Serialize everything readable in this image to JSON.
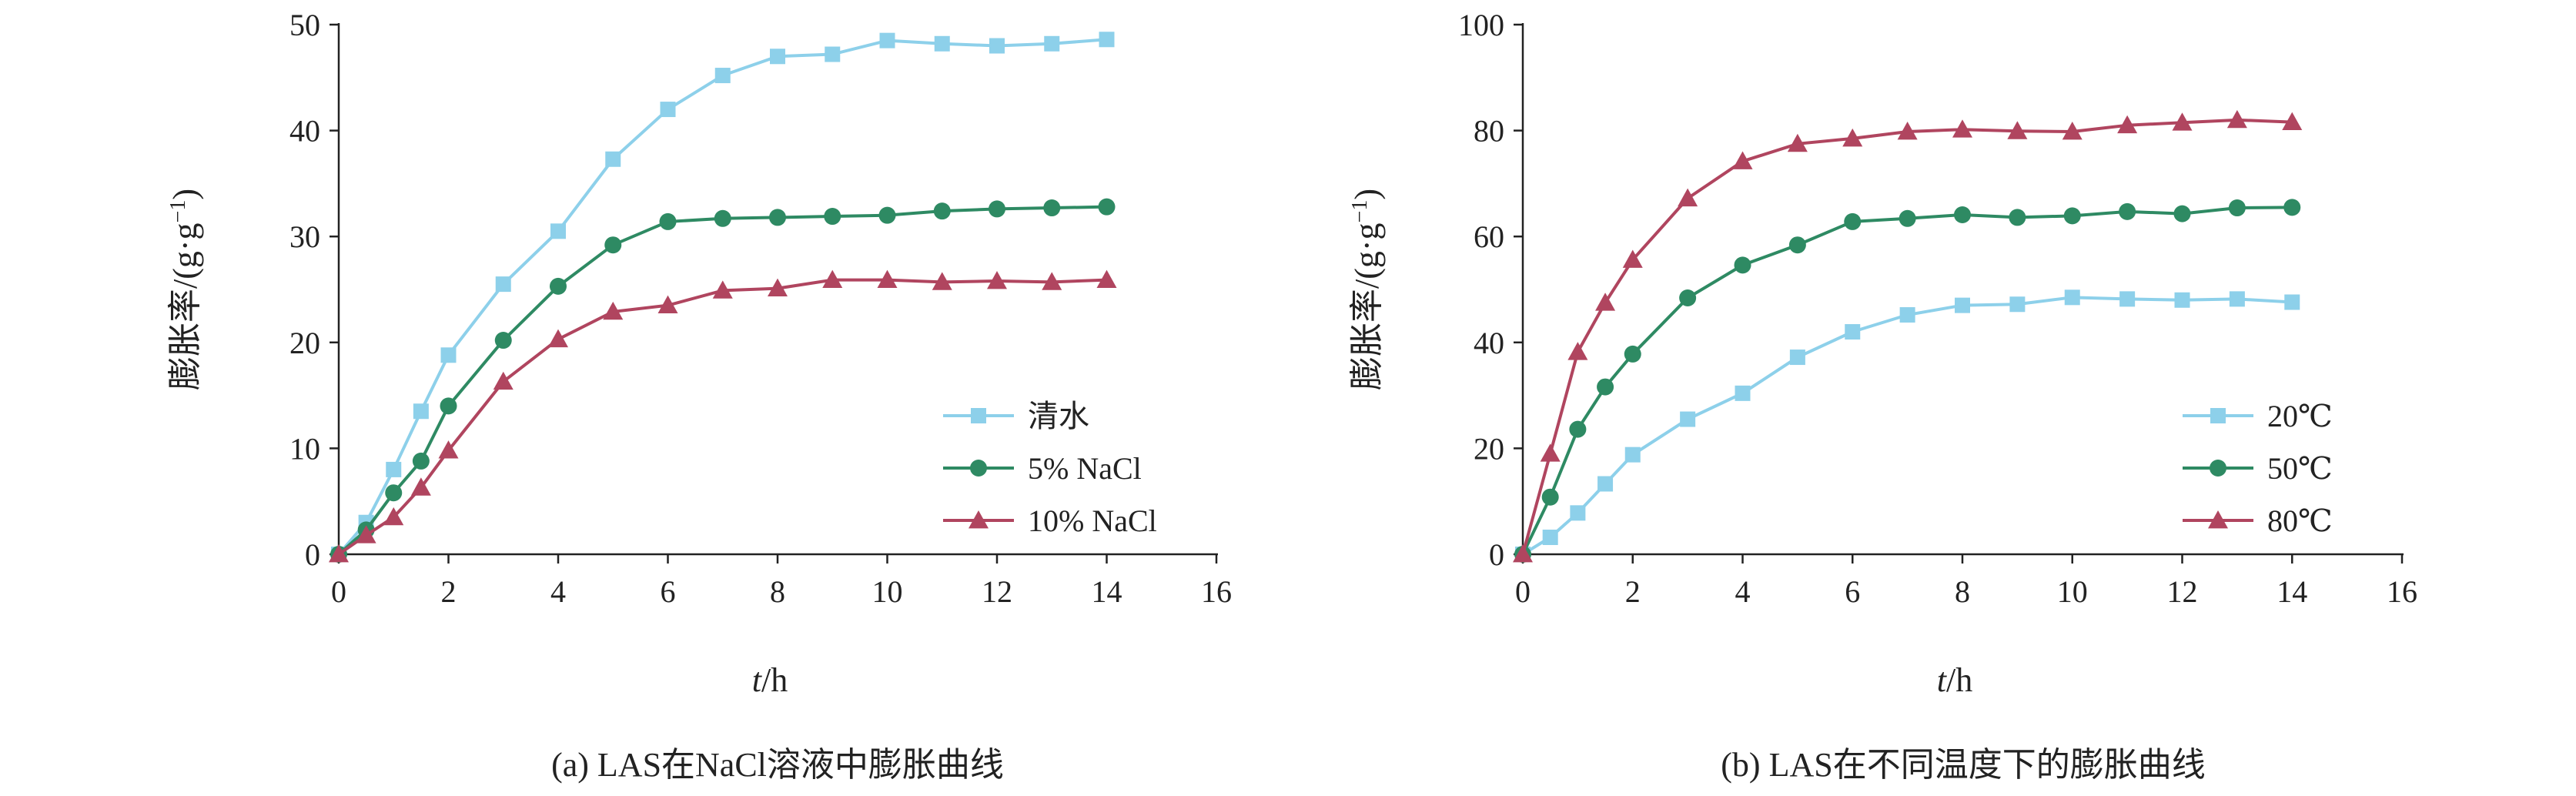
{
  "chart_data": [
    {
      "type": "line",
      "caption": "(a) LAS在NaCl溶液中膨胀曲线",
      "xlabel_italic": "t",
      "xlabel_unit": "/h",
      "ylabel": "膨胀率/(g·g",
      "ylabel_sup": "−1",
      "ylabel_end": ")",
      "xlim": [
        0,
        16
      ],
      "ylim": [
        0,
        50
      ],
      "xticks": [
        0,
        2,
        4,
        6,
        8,
        10,
        12,
        14,
        16
      ],
      "yticks": [
        0,
        10,
        20,
        30,
        40,
        50
      ],
      "legend_position": "right-middle",
      "series": [
        {
          "name": "清水",
          "color": "#8dd0ea",
          "marker": "square",
          "x": [
            0,
            0.5,
            1,
            1.5,
            2,
            3,
            4,
            5,
            6,
            7,
            8,
            9,
            10,
            11,
            12,
            13,
            14
          ],
          "y": [
            0,
            3,
            8,
            13.5,
            18.8,
            25.5,
            30.5,
            37.3,
            42,
            45.2,
            47,
            47.2,
            48.5,
            48.2,
            48,
            48.2,
            48.6
          ]
        },
        {
          "name": "5% NaCl",
          "color": "#2e8a63",
          "marker": "circle",
          "x": [
            0,
            0.5,
            1,
            1.5,
            2,
            3,
            4,
            5,
            6,
            7,
            8,
            9,
            10,
            11,
            12,
            13,
            14
          ],
          "y": [
            0,
            2.3,
            5.8,
            8.8,
            14,
            20.2,
            25.3,
            29.2,
            31.4,
            31.7,
            31.8,
            31.9,
            32,
            32.4,
            32.6,
            32.7,
            32.8
          ]
        },
        {
          "name": "10% NaCl",
          "color": "#b0455f",
          "marker": "triangle",
          "x": [
            0,
            0.5,
            1,
            1.5,
            2,
            3,
            4,
            5,
            6,
            7,
            8,
            9,
            10,
            11,
            12,
            13,
            14
          ],
          "y": [
            0,
            1.8,
            3.5,
            6.3,
            9.8,
            16.3,
            20.3,
            22.9,
            23.5,
            24.9,
            25.1,
            25.9,
            25.9,
            25.7,
            25.8,
            25.7,
            25.9
          ]
        }
      ]
    },
    {
      "type": "line",
      "caption": "(b) LAS在不同温度下的膨胀曲线",
      "xlabel_italic": "t",
      "xlabel_unit": "/h",
      "ylabel": "膨胀率/(g·g",
      "ylabel_sup": "−1",
      "ylabel_end": ")",
      "xlim": [
        0,
        16
      ],
      "ylim": [
        0,
        100
      ],
      "xticks": [
        0,
        2,
        4,
        6,
        8,
        10,
        12,
        14,
        16
      ],
      "yticks": [
        0,
        20,
        40,
        60,
        80,
        100
      ],
      "legend_position": "right-middle",
      "series": [
        {
          "name": "20℃",
          "color": "#8dd0ea",
          "marker": "square",
          "x": [
            0,
            0.5,
            1,
            1.5,
            2,
            3,
            4,
            5,
            6,
            7,
            8,
            9,
            10,
            11,
            12,
            13,
            14
          ],
          "y": [
            0,
            3.2,
            7.8,
            13.3,
            18.8,
            25.5,
            30.4,
            37.2,
            42,
            45.2,
            47,
            47.2,
            48.5,
            48.2,
            48,
            48.2,
            47.6
          ]
        },
        {
          "name": "50℃",
          "color": "#2e8a63",
          "marker": "circle",
          "x": [
            0,
            0.5,
            1,
            1.5,
            2,
            3,
            4,
            5,
            6,
            7,
            8,
            9,
            10,
            11,
            12,
            13,
            14
          ],
          "y": [
            0,
            10.8,
            23.6,
            31.6,
            37.8,
            48.4,
            54.6,
            58.4,
            62.8,
            63.4,
            64.1,
            63.6,
            63.9,
            64.7,
            64.3,
            65.4,
            65.5
          ]
        },
        {
          "name": "80℃",
          "color": "#b0455f",
          "marker": "triangle",
          "x": [
            0,
            0.5,
            1,
            1.5,
            2,
            3,
            4,
            5,
            6,
            7,
            8,
            9,
            10,
            11,
            12,
            13,
            14
          ],
          "y": [
            0,
            19,
            38.2,
            47.5,
            55.6,
            67.2,
            74.2,
            77.5,
            78.5,
            79.8,
            80.2,
            79.9,
            79.8,
            81,
            81.5,
            82,
            81.6
          ]
        }
      ]
    }
  ]
}
